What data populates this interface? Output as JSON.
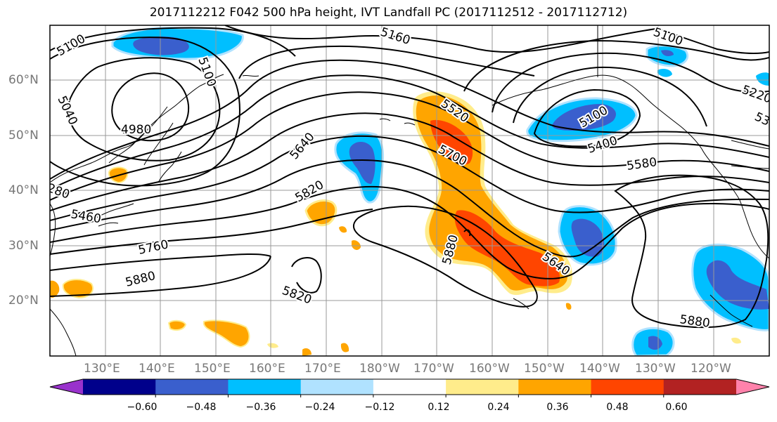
{
  "title": "2017112212 F042 500 hPa height, IVT Landfall PC (2017112512 - 2017112712)",
  "axes": {
    "lat_labels": [
      "60°N",
      "50°N",
      "40°N",
      "30°N",
      "20°N"
    ],
    "lon_labels": [
      "130°E",
      "140°E",
      "150°E",
      "160°E",
      "170°E",
      "180°W",
      "170°W",
      "160°W",
      "150°W",
      "140°W",
      "130°W",
      "120°W"
    ]
  },
  "contour_labels": [
    "5100",
    "5160",
    "5100",
    "5220",
    "5040",
    "5100",
    "4980",
    "5520",
    "5100",
    "5400",
    "53",
    "5700",
    "5580",
    "5640",
    "5820",
    "280",
    "5460",
    "5880",
    "5760",
    "5640",
    "5880",
    "5820",
    "5880"
  ],
  "colorbar": {
    "colors": [
      "#9932cc",
      "#00008b",
      "#3a5fcd",
      "#00bfff",
      "#b0e2ff",
      "#ffffff",
      "#ffec8b",
      "#ffa500",
      "#ff4500",
      "#b22222",
      "#ff82ab"
    ],
    "tick_labels": [
      "−0.60",
      "−0.48",
      "−0.36",
      "−0.24",
      "−0.12",
      "0.12",
      "0.24",
      "0.36",
      "0.48",
      "0.60"
    ]
  }
}
